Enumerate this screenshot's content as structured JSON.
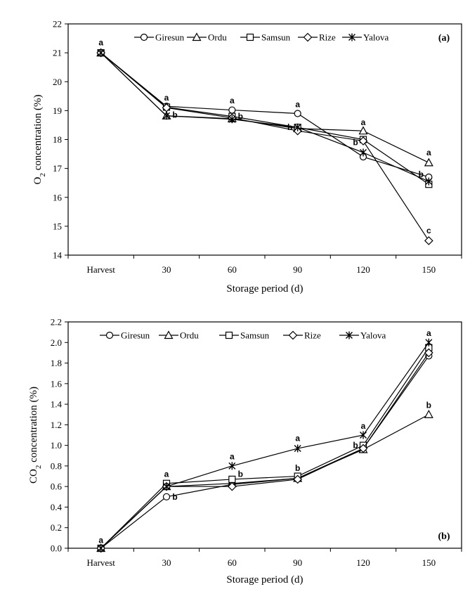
{
  "chart_data": [
    {
      "type": "line",
      "panel_label": "(a)",
      "xlabel": "Storage period (d)",
      "ylabel_main": "O",
      "ylabel_sub": "2",
      "ylabel_rest": " concentration (%)",
      "categories": [
        "Harvest",
        "30",
        "60",
        "90",
        "120",
        "150"
      ],
      "ylim": [
        14,
        22
      ],
      "yticks": [
        "14",
        "15",
        "16",
        "17",
        "18",
        "19",
        "20",
        "21",
        "22"
      ],
      "legend_position": "top",
      "series": [
        {
          "name": "Giresun",
          "marker": "circle",
          "values": [
            21.0,
            19.15,
            19.02,
            18.9,
            17.4,
            16.7
          ]
        },
        {
          "name": "Ordu",
          "marker": "triangle",
          "values": [
            21.0,
            18.82,
            18.72,
            18.38,
            18.3,
            17.2
          ]
        },
        {
          "name": "Samsun",
          "marker": "square",
          "values": [
            21.0,
            19.12,
            18.8,
            18.42,
            18.0,
            16.45
          ]
        },
        {
          "name": "Rize",
          "marker": "diamond",
          "values": [
            21.0,
            19.1,
            18.75,
            18.3,
            17.95,
            14.5
          ]
        },
        {
          "name": "Yalova",
          "marker": "star",
          "values": [
            21.0,
            18.82,
            18.7,
            18.42,
            17.55,
            16.55
          ]
        }
      ],
      "annotations": [
        {
          "text": "a",
          "x": "Harvest",
          "y": 21.35
        },
        {
          "text": "a",
          "x": "30",
          "y": 19.45
        },
        {
          "text": "b",
          "x": "30",
          "y": 18.85,
          "side": "right"
        },
        {
          "text": "a",
          "x": "60",
          "y": 19.35
        },
        {
          "text": "b",
          "x": "60",
          "y": 18.8,
          "side": "right"
        },
        {
          "text": "a",
          "x": "90",
          "y": 19.22
        },
        {
          "text": "b",
          "x": "90",
          "y": 18.42,
          "side": "left"
        },
        {
          "text": "a",
          "x": "120",
          "y": 18.6
        },
        {
          "text": "b",
          "x": "120",
          "y": 17.9,
          "side": "left"
        },
        {
          "text": "a",
          "x": "150",
          "y": 17.55
        },
        {
          "text": "b",
          "x": "150",
          "y": 16.8,
          "side": "left"
        },
        {
          "text": "c",
          "x": "150",
          "y": 14.85
        }
      ]
    },
    {
      "type": "line",
      "panel_label": "(b)",
      "xlabel": "Storage period (d)",
      "ylabel_main": "CO",
      "ylabel_sub": "2",
      "ylabel_rest": " concentration (%)",
      "categories": [
        "Harvest",
        "30",
        "60",
        "90",
        "120",
        "150"
      ],
      "ylim": [
        0,
        2.2
      ],
      "yticks": [
        "0.0",
        "0.2",
        "0.4",
        "0.6",
        "0.8",
        "1.0",
        "1.2",
        "1.4",
        "1.6",
        "1.8",
        "2.0",
        "2.2"
      ],
      "legend_position": "top",
      "series": [
        {
          "name": "Giresun",
          "marker": "circle",
          "values": [
            0.0,
            0.5,
            0.62,
            0.68,
            0.97,
            1.87
          ]
        },
        {
          "name": "Ordu",
          "marker": "triangle",
          "values": [
            0.0,
            0.6,
            0.63,
            0.68,
            0.96,
            1.3
          ]
        },
        {
          "name": "Samsun",
          "marker": "square",
          "values": [
            0.0,
            0.63,
            0.67,
            0.7,
            1.0,
            1.95
          ]
        },
        {
          "name": "Rize",
          "marker": "diamond",
          "values": [
            0.0,
            0.6,
            0.6,
            0.67,
            0.97,
            1.9
          ]
        },
        {
          "name": "Yalova",
          "marker": "star",
          "values": [
            0.0,
            0.6,
            0.8,
            0.97,
            1.1,
            2.0
          ]
        }
      ],
      "annotations": [
        {
          "text": "a",
          "x": "Harvest",
          "y": 0.08
        },
        {
          "text": "a",
          "x": "30",
          "y": 0.72
        },
        {
          "text": "b",
          "x": "30",
          "y": 0.5,
          "side": "right"
        },
        {
          "text": "a",
          "x": "60",
          "y": 0.89
        },
        {
          "text": "b",
          "x": "60",
          "y": 0.72,
          "side": "right"
        },
        {
          "text": "a",
          "x": "90",
          "y": 1.07
        },
        {
          "text": "b",
          "x": "90",
          "y": 0.78
        },
        {
          "text": "a",
          "x": "120",
          "y": 1.19
        },
        {
          "text": "b",
          "x": "120",
          "y": 1.0,
          "side": "left"
        },
        {
          "text": "a",
          "x": "150",
          "y": 2.09
        },
        {
          "text": "b",
          "x": "150",
          "y": 1.39
        }
      ]
    }
  ]
}
